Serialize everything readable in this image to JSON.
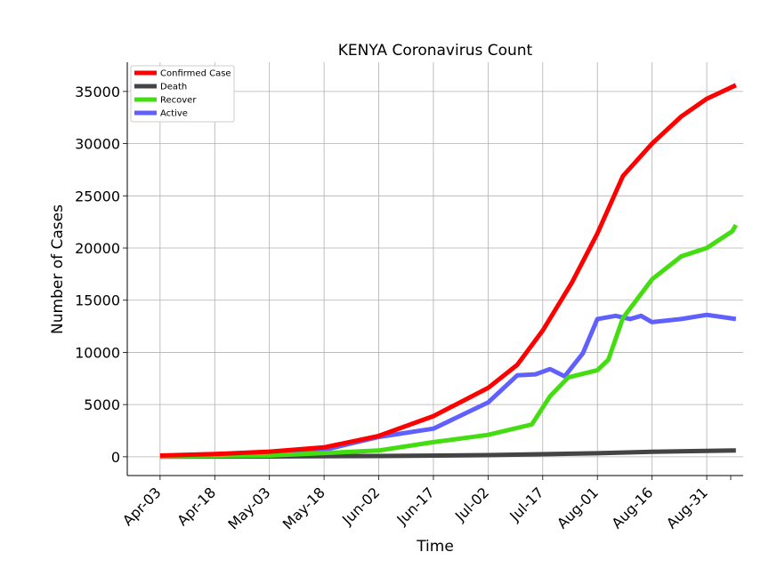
{
  "chart_data": {
    "type": "line",
    "title": "KENYA Coronavirus Count",
    "xlabel": "Time",
    "ylabel": "Number of Cases",
    "x_start": "Apr-03",
    "x_end": "Sep-08",
    "xlim": [
      "Mar-25",
      "Sep-10"
    ],
    "xticks": [
      "Apr-03",
      "Apr-18",
      "May-03",
      "May-18",
      "Jun-02",
      "Jun-17",
      "Jul-02",
      "Jul-17",
      "Aug-01",
      "Aug-16",
      "Aug-31"
    ],
    "ylim": [
      -1800,
      37800
    ],
    "yticks": [
      0,
      5000,
      10000,
      15000,
      20000,
      25000,
      30000,
      35000
    ],
    "grid": true,
    "legend_position": "top-left",
    "series": [
      {
        "name": "Confirmed Case",
        "color": "#ff0000",
        "x": [
          "Apr-03",
          "Apr-18",
          "May-03",
          "May-18",
          "Jun-02",
          "Jun-17",
          "Jul-02",
          "Jul-10",
          "Jul-17",
          "Jul-25",
          "Aug-01",
          "Aug-08",
          "Aug-16",
          "Aug-24",
          "Aug-31",
          "Sep-08"
        ],
        "values": [
          120,
          260,
          490,
          900,
          2000,
          3900,
          6600,
          8800,
          12100,
          16700,
          21400,
          26900,
          30000,
          32600,
          34300,
          35600
        ]
      },
      {
        "name": "Death",
        "color": "#444444",
        "x": [
          "Apr-03",
          "May-03",
          "Jun-02",
          "Jul-02",
          "Aug-01",
          "Aug-16",
          "Sep-08"
        ],
        "values": [
          5,
          30,
          70,
          160,
          340,
          480,
          600
        ]
      },
      {
        "name": "Recover",
        "color": "#44dd11",
        "x": [
          "Apr-03",
          "May-03",
          "Jun-02",
          "Jun-17",
          "Jul-02",
          "Jul-14",
          "Jul-19",
          "Jul-24",
          "Aug-01",
          "Aug-04",
          "Aug-08",
          "Aug-16",
          "Aug-24",
          "Aug-31",
          "Sep-07",
          "Sep-08"
        ],
        "values": [
          30,
          120,
          600,
          1400,
          2100,
          3100,
          5800,
          7600,
          8300,
          9300,
          13300,
          17000,
          19200,
          20000,
          21600,
          22200
        ]
      },
      {
        "name": "Active",
        "color": "#6060ff",
        "x": [
          "Apr-03",
          "May-03",
          "May-18",
          "Jun-02",
          "Jun-17",
          "Jul-02",
          "Jul-10",
          "Jul-15",
          "Jul-19",
          "Jul-23",
          "Jul-28",
          "Aug-01",
          "Aug-06",
          "Aug-10",
          "Aug-13",
          "Aug-16",
          "Aug-24",
          "Aug-31",
          "Sep-08"
        ],
        "values": [
          80,
          330,
          660,
          1900,
          2700,
          5200,
          7800,
          7900,
          8400,
          7700,
          9900,
          13200,
          13500,
          13200,
          13500,
          12900,
          13200,
          13600,
          13200
        ]
      }
    ]
  }
}
